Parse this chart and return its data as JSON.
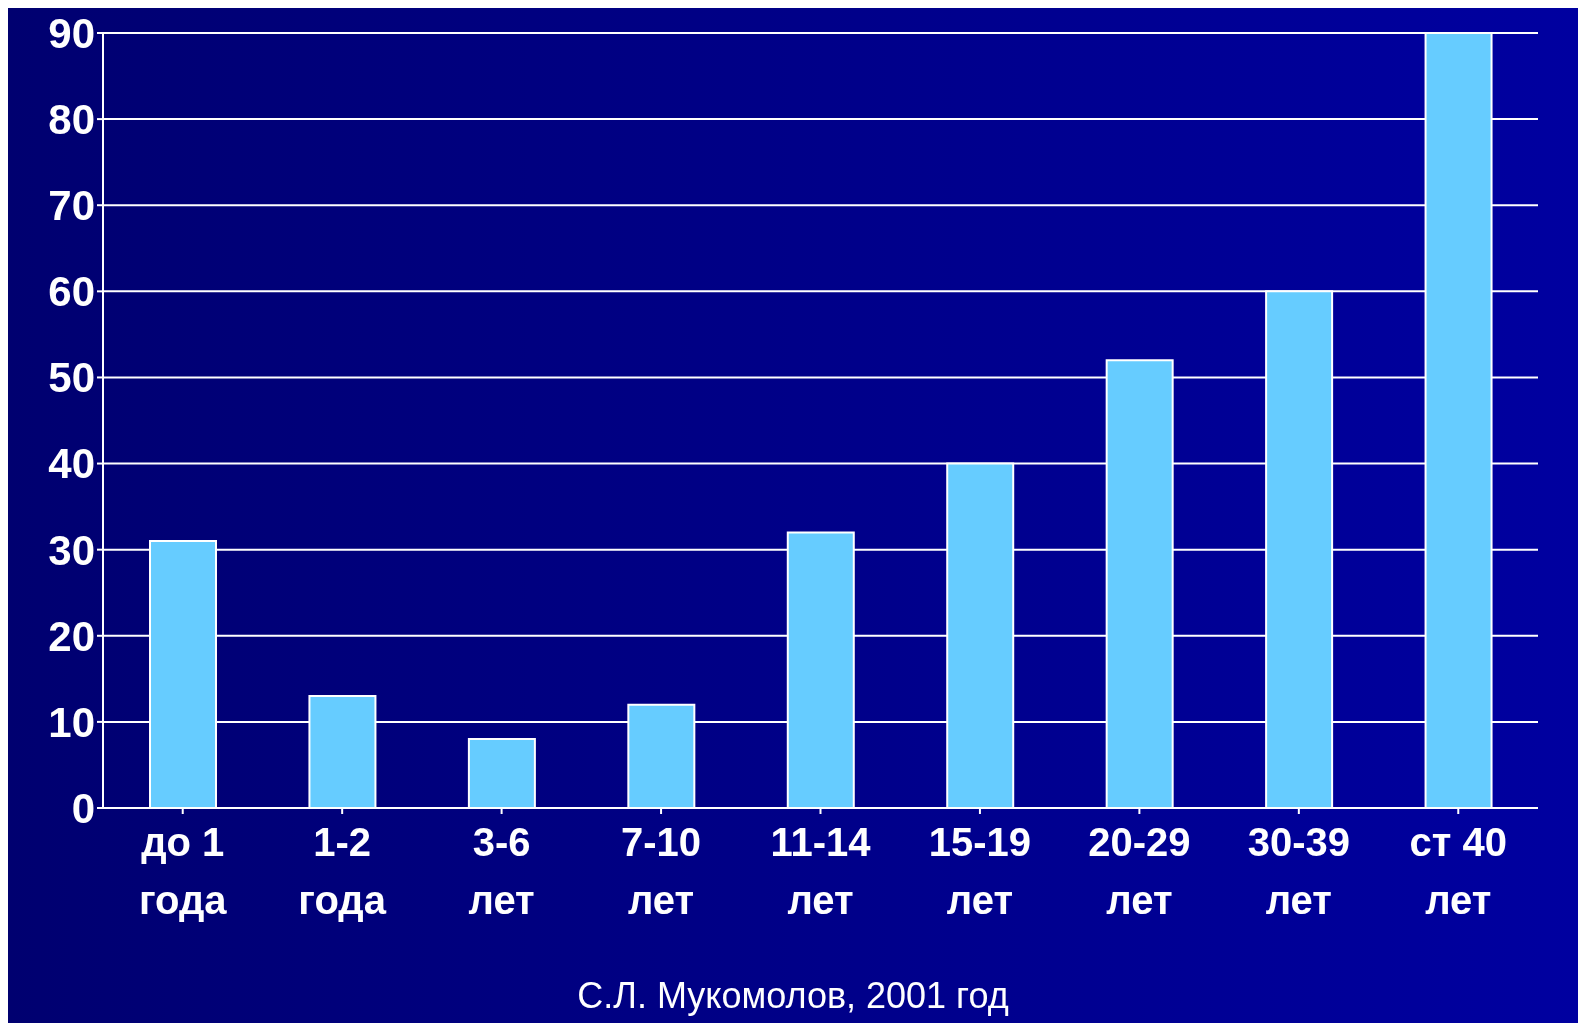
{
  "chart_data": {
    "type": "bar",
    "categories": [
      "до 1\nгода",
      "1-2\nгода",
      "3-6\nлет",
      "7-10\nлет",
      "11-14\nлет",
      "15-19\nлет",
      "20-29\nлет",
      "30-39\nлет",
      "ст 40\nлет"
    ],
    "values": [
      31,
      13,
      8,
      12,
      32,
      40,
      52,
      60,
      90
    ],
    "color": "#66ccff",
    "ylim": [
      0,
      90
    ],
    "yticks": [
      0,
      10,
      20,
      30,
      40,
      50,
      60,
      70,
      80,
      90
    ],
    "grid": "y",
    "annotations": [
      "С.Л. Мукомолов, 2001 год"
    ]
  }
}
